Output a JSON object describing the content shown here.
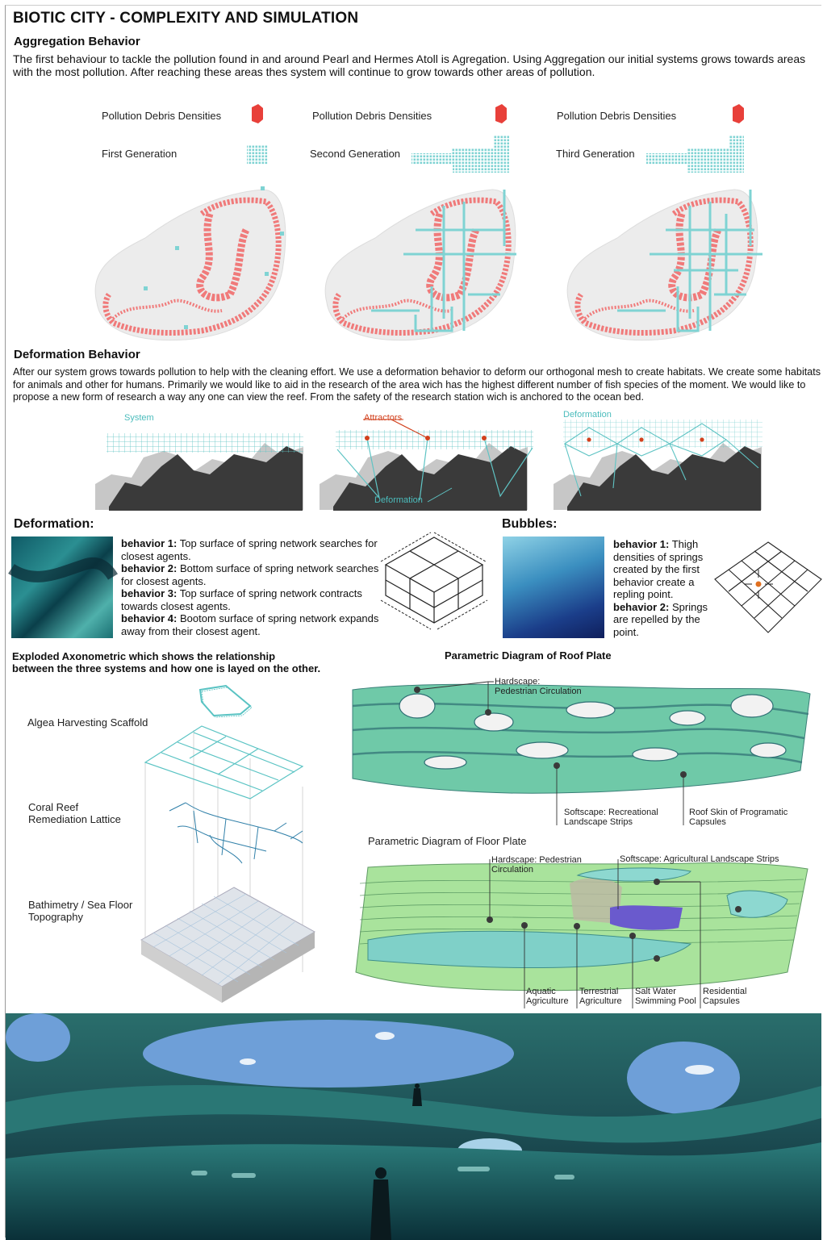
{
  "title": "BIOTIC CITY - COMPLEXITY AND SIMULATION",
  "aggregation": {
    "heading": "Aggregation Behavior",
    "text": "The first behaviour to tackle the pollution found in and around Pearl and Hermes Atoll is Agregation. Using Aggregation our initial systems grows towards areas with the most pollution. After reaching these areas thes system will continue to grow towards other areas of pollution.",
    "legend": [
      {
        "density_label": "Pollution Debris Densities",
        "generation_label": "First Generation"
      },
      {
        "density_label": "Pollution Debris Densities",
        "generation_label": "Second Generation"
      },
      {
        "density_label": "Pollution Debris Densities",
        "generation_label": "Third Generation"
      }
    ],
    "colors": {
      "pollution": "#f07a7a",
      "system": "#7fd3d3",
      "debris_icon": "#e8403a"
    }
  },
  "deformation_behavior": {
    "heading": "Deformation Behavior",
    "text": "After our system grows towards pollution to help with the cleaning effort. We use a deformation behavior to deform our orthogonal mesh to create habitats. We create some habitats for animals and other for humans. Primarily we would like to aid in the research of the area wich has the highest different number of fish species of the moment. We would like to propose a new form of research a way any one can view the reef. From the safety of the research station wich is anchored to the ocean bed.",
    "diagram_labels": {
      "system": "System",
      "attractors": "Attractors",
      "deformation": "Deformation",
      "deformation2": "Deformation"
    }
  },
  "deformation_panel": {
    "heading": "Deformation:",
    "behaviors": [
      {
        "label": "behavior 1:",
        "text": " Top surface of spring network searches for closest agents."
      },
      {
        "label": "behavior 2:",
        "text": " Bottom surface of spring network searches for closest agents."
      },
      {
        "label": "behavior 3:",
        "text": " Top surface of spring network contracts towards closest agents."
      },
      {
        "label": "behavior 4:",
        "text": " Bootom surface of spring network expands away from their closest agent."
      }
    ]
  },
  "bubbles_panel": {
    "heading": "Bubbles:",
    "behaviors": [
      {
        "label": "behavior 1:",
        "text": " Thigh densities of springs created by the first behavior create a repling point."
      },
      {
        "label": "behavior 2:",
        "text": " Springs are repelled by the point."
      }
    ]
  },
  "exploded": {
    "caption_line1": "Exploded Axonometric which shows the relationship",
    "caption_line2": "between the three systems and how one is layed on the other.",
    "layers": [
      {
        "line1": "Algea Harvesting Scaffold",
        "line2": ""
      },
      {
        "line1": "Coral Reef",
        "line2": "Remediation Lattice"
      },
      {
        "line1": "Bathimetry / Sea Floor",
        "line2": "Topography"
      }
    ]
  },
  "roof_plate": {
    "title": "Parametric Diagram of Roof Plate",
    "callouts": [
      {
        "line1": "Hardscape:",
        "line2": "Pedestrian Circulation"
      },
      {
        "line1": "Softscape: Recreational",
        "line2": "Landscape Strips"
      },
      {
        "line1": "Roof Skin of Programatic",
        "line2": "Capsules"
      }
    ]
  },
  "floor_plate": {
    "title": "Parametric Diagram of Floor Plate",
    "callouts_top": [
      {
        "line1": "Hardscape: Pedestrian",
        "line2": "Circulation"
      },
      {
        "line1": "Softscape: Agricultural Landscape Strips",
        "line2": ""
      }
    ],
    "callouts_bottom": [
      {
        "line1": "Aquatic",
        "line2": "Agriculture"
      },
      {
        "line1": "Terrestrial",
        "line2": "Agriculture"
      },
      {
        "line1": "Salt Water",
        "line2": "Swimming Pool"
      },
      {
        "line1": "Residential",
        "line2": "Capsules"
      }
    ]
  }
}
